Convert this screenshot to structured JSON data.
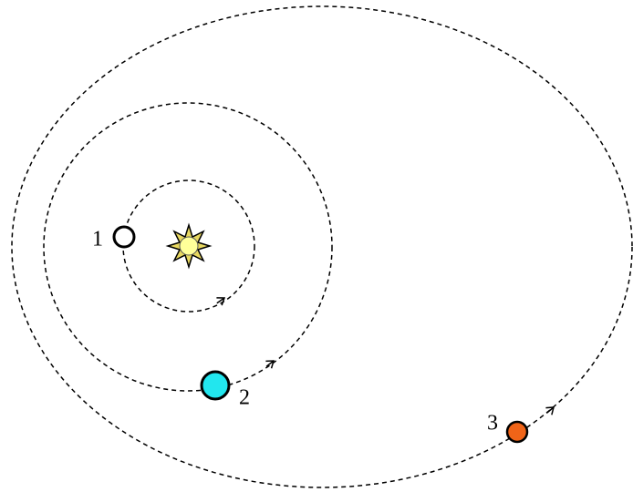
{
  "nodes": [
    {
      "label": "1"
    },
    {
      "label": "2"
    },
    {
      "label": "3"
    }
  ]
}
